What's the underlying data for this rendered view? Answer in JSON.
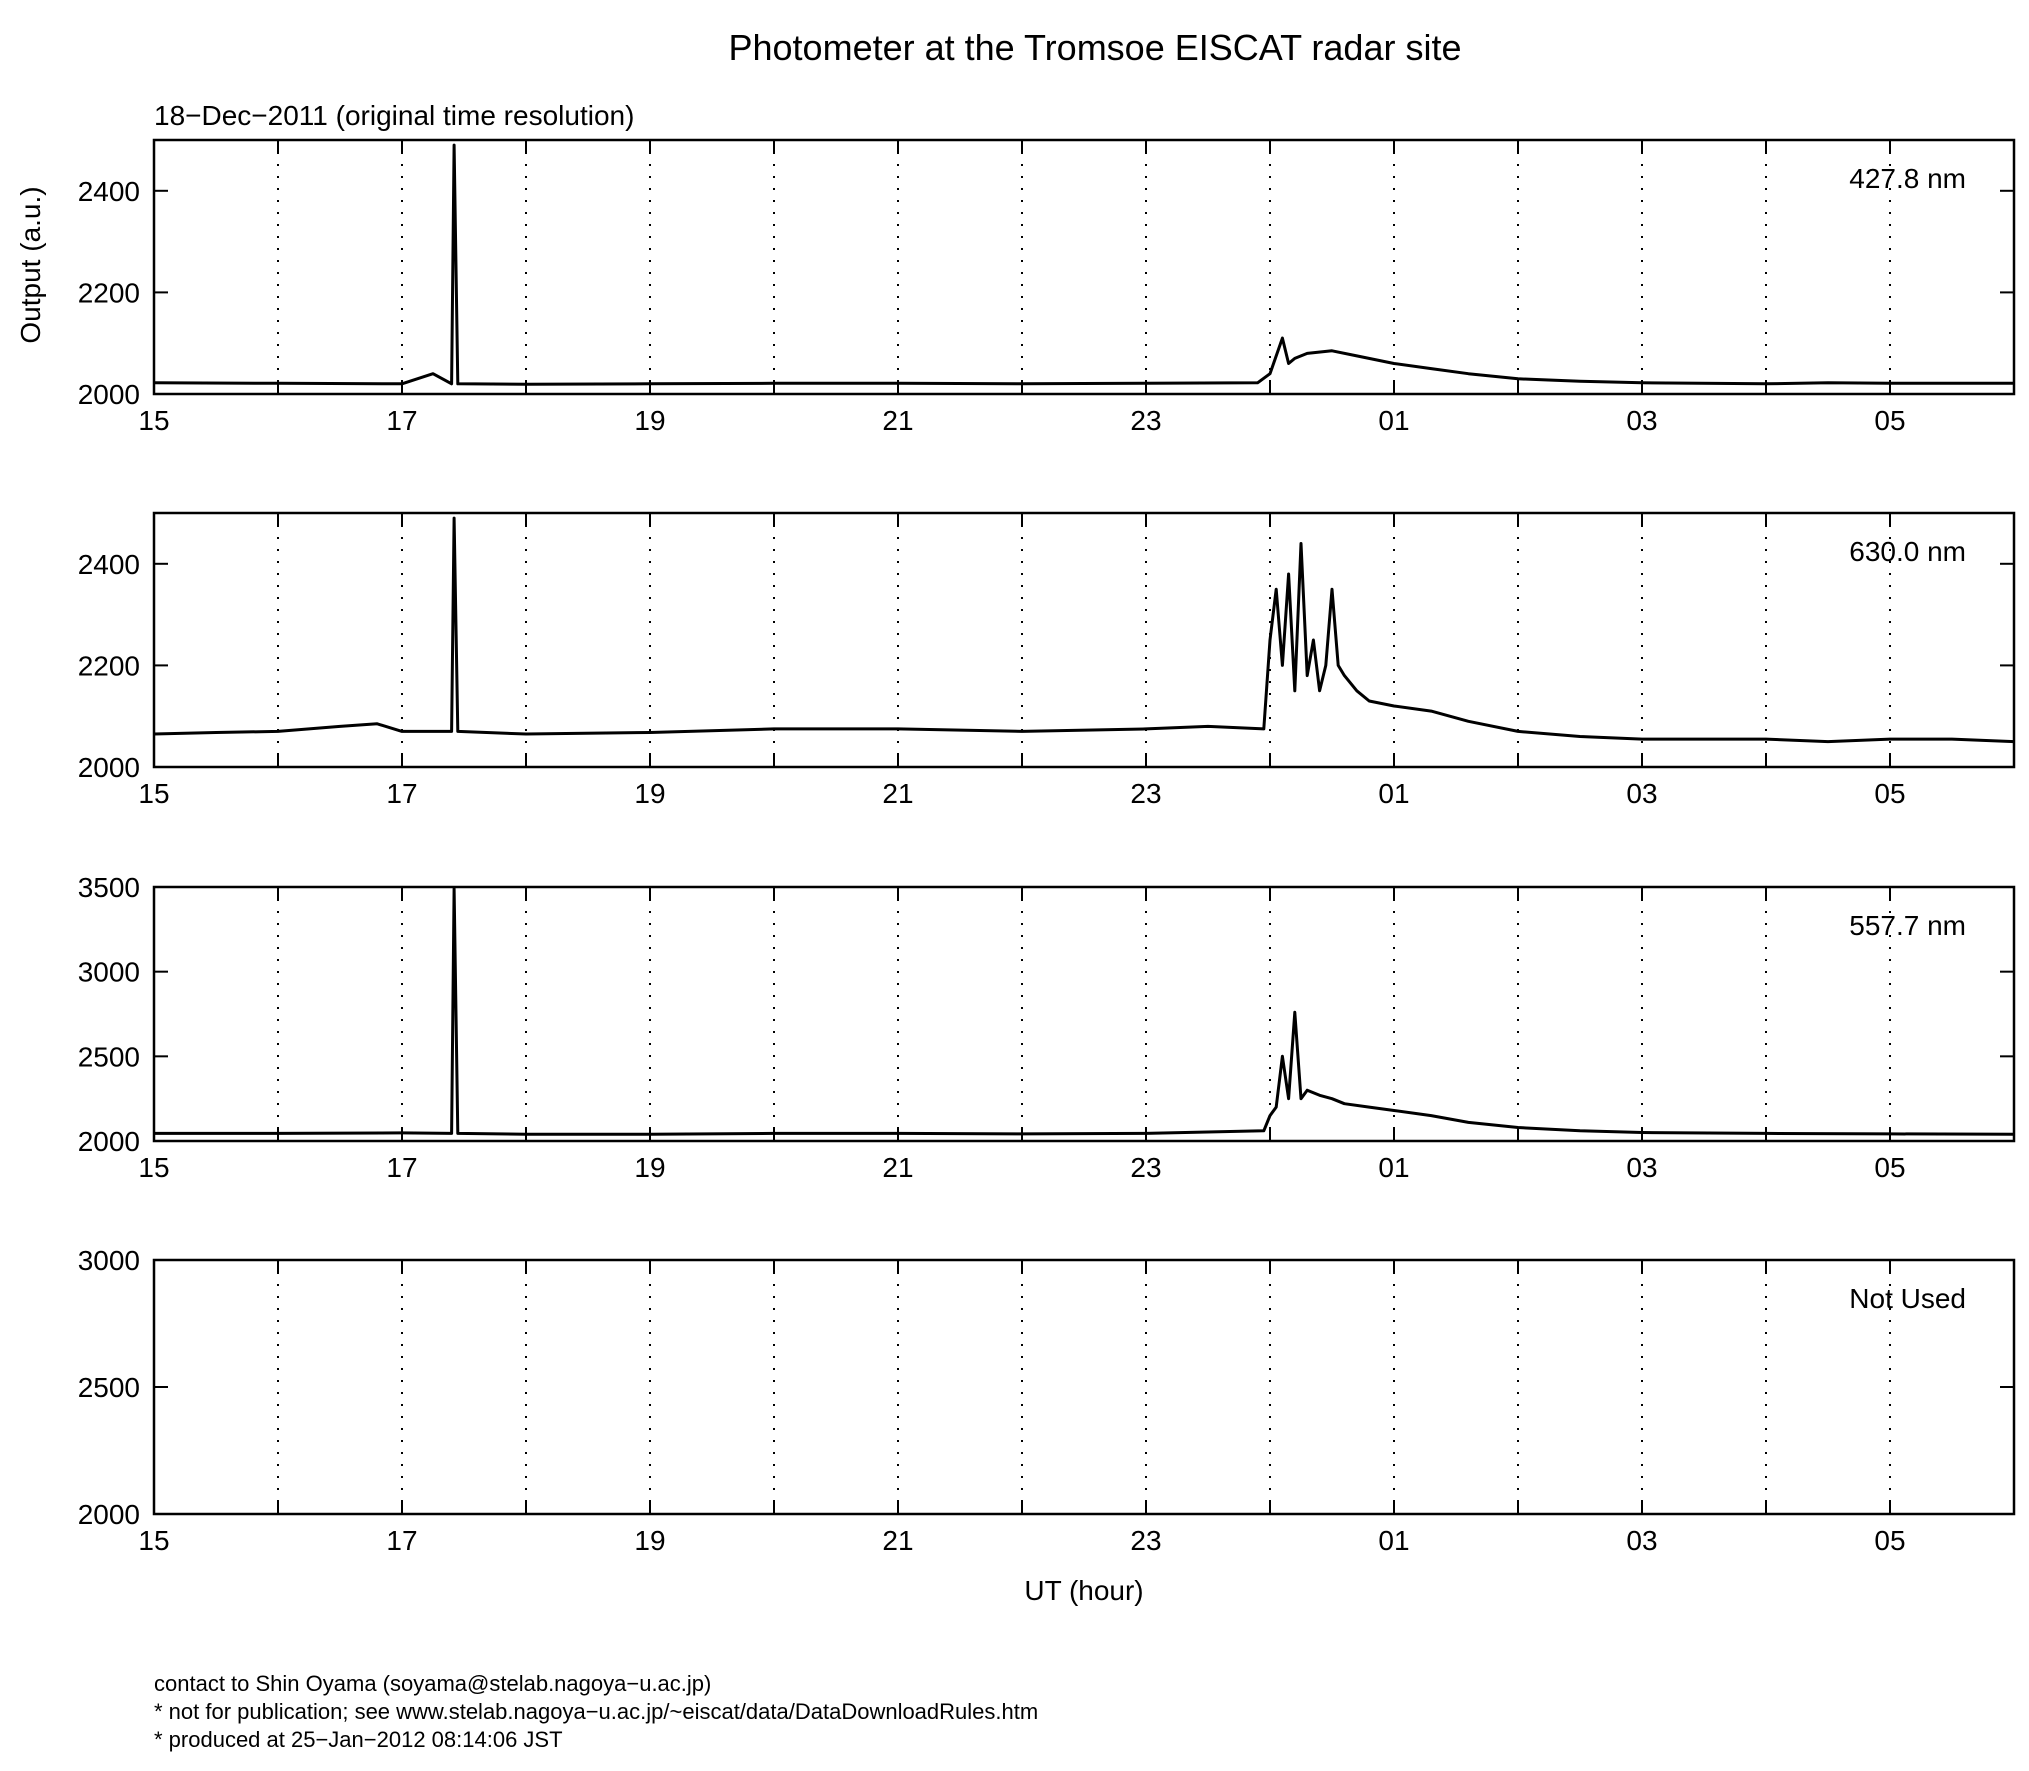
{
  "figure": {
    "title": "Photometer at the Tromsoe EISCAT radar site",
    "subtitle": "18−Dec−2011 (original time resolution)",
    "ylabel": "Output (a.u.)",
    "xlabel": "UT (hour)"
  },
  "footer": {
    "line1": "contact to Shin Oyama (soyama@stelab.nagoya−u.ac.jp)",
    "line2": "* not for publication; see www.stelab.nagoya−u.ac.jp/~eiscat/data/DataDownloadRules.htm",
    "line3": "* produced at 25−Jan−2012 08:14:06 JST"
  },
  "chart_data": [
    {
      "type": "line",
      "label": "427.8 nm",
      "xlim": [
        15,
        30
      ],
      "ylim": [
        2000,
        2500
      ],
      "x_ticks": [
        "15",
        "17",
        "19",
        "21",
        "23",
        "01",
        "03",
        "05"
      ],
      "y_ticks": [
        2000,
        2200,
        2400
      ],
      "grid": "dotted vertical every hour",
      "series": [
        {
          "x": [
            15,
            16,
            17,
            17.25,
            17.4,
            17.42,
            17.45,
            18,
            19,
            20,
            21,
            22,
            23,
            23.9,
            24.0,
            24.1,
            24.15,
            24.2,
            24.3,
            24.5,
            24.7,
            25.0,
            25.3,
            25.6,
            26.0,
            26.5,
            27,
            28,
            28.5,
            29,
            30
          ],
          "y": [
            2022,
            2021,
            2020,
            2040,
            2020,
            2490,
            2020,
            2019,
            2020,
            2021,
            2021,
            2020,
            2021,
            2022,
            2040,
            2110,
            2060,
            2070,
            2080,
            2085,
            2075,
            2060,
            2050,
            2040,
            2030,
            2025,
            2022,
            2020,
            2022,
            2021,
            2021
          ]
        }
      ]
    },
    {
      "type": "line",
      "label": "630.0 nm",
      "xlim": [
        15,
        30
      ],
      "ylim": [
        2000,
        2500
      ],
      "x_ticks": [
        "15",
        "17",
        "19",
        "21",
        "23",
        "01",
        "03",
        "05"
      ],
      "y_ticks": [
        2000,
        2200,
        2400
      ],
      "grid": "dotted vertical every hour",
      "series": [
        {
          "x": [
            15,
            15.5,
            16,
            16.5,
            16.8,
            17,
            17.4,
            17.42,
            17.45,
            18,
            19,
            20,
            21,
            22,
            23,
            23.5,
            23.95,
            24.0,
            24.05,
            24.1,
            24.15,
            24.2,
            24.25,
            24.3,
            24.35,
            24.4,
            24.45,
            24.5,
            24.55,
            24.6,
            24.7,
            24.8,
            25.0,
            25.3,
            25.6,
            26.0,
            26.5,
            27,
            27.5,
            28,
            28.5,
            29,
            29.5,
            30
          ],
          "y": [
            2065,
            2068,
            2070,
            2080,
            2085,
            2070,
            2070,
            2490,
            2070,
            2065,
            2068,
            2075,
            2075,
            2070,
            2075,
            2080,
            2075,
            2250,
            2350,
            2200,
            2380,
            2150,
            2440,
            2180,
            2250,
            2150,
            2200,
            2350,
            2200,
            2180,
            2150,
            2130,
            2120,
            2110,
            2090,
            2070,
            2060,
            2055,
            2055,
            2055,
            2050,
            2055,
            2055,
            2050
          ]
        }
      ]
    },
    {
      "type": "line",
      "label": "557.7 nm",
      "xlim": [
        15,
        30
      ],
      "ylim": [
        2000,
        3500
      ],
      "x_ticks": [
        "15",
        "17",
        "19",
        "21",
        "23",
        "01",
        "03",
        "05"
      ],
      "y_ticks": [
        2000,
        2500,
        3000,
        3500
      ],
      "grid": "dotted vertical every hour",
      "series": [
        {
          "x": [
            15,
            16,
            17,
            17.4,
            17.42,
            17.45,
            18,
            19,
            20,
            21,
            22,
            23,
            23.95,
            24.0,
            24.05,
            24.1,
            24.15,
            24.2,
            24.25,
            24.3,
            24.4,
            24.5,
            24.6,
            24.8,
            25.0,
            25.3,
            25.6,
            26.0,
            26.5,
            27,
            28,
            29,
            30
          ],
          "y": [
            2045,
            2045,
            2048,
            2045,
            3490,
            2045,
            2040,
            2040,
            2045,
            2045,
            2042,
            2045,
            2060,
            2150,
            2200,
            2500,
            2250,
            2760,
            2250,
            2300,
            2270,
            2250,
            2220,
            2200,
            2180,
            2150,
            2110,
            2080,
            2060,
            2050,
            2045,
            2042,
            2040
          ]
        }
      ]
    },
    {
      "type": "line",
      "label": "Not Used",
      "xlim": [
        15,
        30
      ],
      "ylim": [
        2000,
        3000
      ],
      "x_ticks": [
        "15",
        "17",
        "19",
        "21",
        "23",
        "01",
        "03",
        "05"
      ],
      "y_ticks": [
        2000,
        2500,
        3000
      ],
      "grid": "dotted vertical every hour",
      "series": []
    }
  ]
}
